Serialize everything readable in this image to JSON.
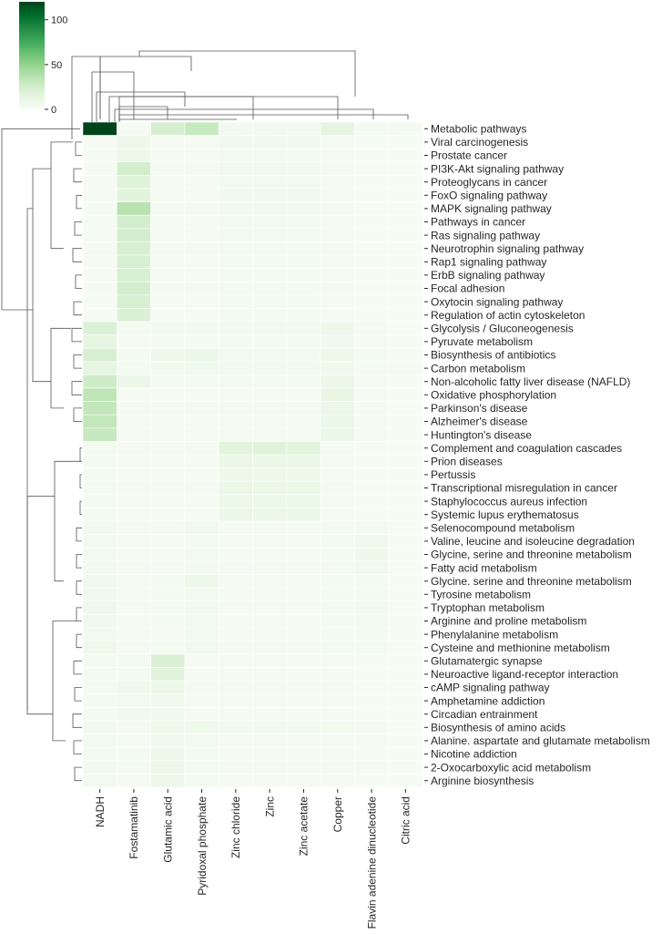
{
  "chart_data": {
    "type": "heatmap",
    "title": "",
    "colormap": {
      "low": "#f7fcf5",
      "mid": "#a1d99b",
      "high": "#00441b"
    },
    "vmin": 0,
    "vmax": 120,
    "colorbar_ticks": [
      {
        "value": 0,
        "label": "0"
      },
      {
        "value": 50,
        "label": "50"
      },
      {
        "value": 100,
        "label": "100"
      }
    ],
    "columns": [
      "NADH",
      "Fostamatinib",
      "Glutamic acid",
      "Pyridoxal phosphate",
      "Zinc chloride",
      "Zinc",
      "Zinc acetate",
      "Copper",
      "Flavin adenine dinucleotide",
      "Citric acid"
    ],
    "rows": [
      "Metabolic pathways",
      "Viral carcinogenesis",
      "Prostate cancer",
      "PI3K-Akt signaling pathway",
      "Proteoglycans in cancer",
      "FoxO signaling pathway",
      "MAPK signaling pathway",
      "Pathways in cancer",
      "Ras signaling pathway",
      "Neurotrophin signaling pathway",
      "Rap1 signaling pathway",
      "ErbB signaling pathway",
      "Focal adhesion",
      "Oxytocin signaling pathway",
      "Regulation of actin cytoskeleton",
      "Glycolysis / Gluconeogenesis",
      "Pyruvate metabolism",
      "Biosynthesis of antibiotics",
      "Carbon metabolism",
      "Non-alcoholic fatty liver disease (NAFLD)",
      "Oxidative phosphorylation",
      "Parkinson's disease",
      "Alzheimer's disease",
      "Huntington's disease",
      "Complement and coagulation cascades",
      "Prion diseases",
      "Pertussis",
      "Transcriptional misregulation in cancer",
      "Staphylococcus aureus infection",
      "Systemic lupus erythematosus",
      "Selenocompound metabolism",
      "Valine, leucine and isoleucine degradation",
      "Glycine, serine and threonine metabolism",
      "Fatty acid metabolism",
      "Glycine. serine and threonine metabolism",
      "Tyrosine metabolism",
      "Tryptophan metabolism",
      "Arginine and proline metabolism",
      "Phenylalanine metabolism",
      "Cysteine and methionine metabolism",
      "Glutamatergic synapse",
      "Neuroactive ligand-receptor interaction",
      "cAMP signaling pathway",
      "Amphetamine addiction",
      "Circadian entrainment",
      "Biosynthesis of amino acids",
      "Alanine. aspartate and glutamate metabolism",
      "Nicotine addiction",
      "2-Oxocarboxylic acid metabolism",
      "Arginine biosynthesis"
    ],
    "values": [
      [
        120,
        2,
        22,
        30,
        4,
        4,
        4,
        14,
        3,
        3
      ],
      [
        2,
        8,
        2,
        2,
        6,
        6,
        6,
        2,
        1,
        1
      ],
      [
        2,
        8,
        2,
        2,
        5,
        5,
        5,
        2,
        1,
        1
      ],
      [
        2,
        24,
        2,
        2,
        6,
        6,
        6,
        2,
        1,
        1
      ],
      [
        2,
        18,
        2,
        2,
        5,
        5,
        5,
        2,
        1,
        1
      ],
      [
        2,
        16,
        2,
        2,
        6,
        6,
        6,
        2,
        1,
        1
      ],
      [
        2,
        36,
        2,
        2,
        4,
        4,
        4,
        2,
        1,
        1
      ],
      [
        2,
        24,
        2,
        2,
        4,
        4,
        4,
        2,
        1,
        1
      ],
      [
        2,
        24,
        2,
        2,
        4,
        4,
        4,
        2,
        1,
        1
      ],
      [
        2,
        22,
        2,
        2,
        3,
        3,
        3,
        2,
        1,
        1
      ],
      [
        2,
        22,
        2,
        2,
        3,
        3,
        3,
        2,
        1,
        1
      ],
      [
        2,
        22,
        2,
        2,
        3,
        3,
        3,
        2,
        1,
        1
      ],
      [
        2,
        24,
        2,
        2,
        3,
        3,
        3,
        2,
        1,
        1
      ],
      [
        2,
        22,
        2,
        2,
        3,
        3,
        3,
        2,
        1,
        1
      ],
      [
        2,
        20,
        2,
        2,
        3,
        3,
        3,
        2,
        1,
        1
      ],
      [
        20,
        3,
        4,
        4,
        5,
        5,
        5,
        8,
        2,
        1
      ],
      [
        14,
        2,
        3,
        3,
        3,
        3,
        3,
        6,
        2,
        1
      ],
      [
        22,
        3,
        8,
        10,
        4,
        4,
        4,
        8,
        3,
        2
      ],
      [
        14,
        3,
        6,
        6,
        4,
        4,
        4,
        6,
        2,
        2
      ],
      [
        26,
        10,
        3,
        3,
        3,
        3,
        3,
        10,
        2,
        1
      ],
      [
        34,
        2,
        2,
        2,
        2,
        2,
        2,
        12,
        2,
        1
      ],
      [
        32,
        2,
        2,
        2,
        2,
        2,
        2,
        10,
        2,
        1
      ],
      [
        32,
        2,
        2,
        2,
        2,
        2,
        2,
        10,
        2,
        1
      ],
      [
        30,
        2,
        2,
        2,
        2,
        2,
        2,
        10,
        2,
        1
      ],
      [
        3,
        2,
        2,
        2,
        16,
        18,
        16,
        2,
        1,
        1
      ],
      [
        3,
        2,
        2,
        2,
        10,
        10,
        10,
        2,
        1,
        1
      ],
      [
        3,
        2,
        2,
        2,
        8,
        8,
        8,
        2,
        1,
        1
      ],
      [
        3,
        2,
        2,
        2,
        10,
        10,
        10,
        2,
        1,
        1
      ],
      [
        3,
        2,
        2,
        2,
        9,
        9,
        9,
        2,
        1,
        1
      ],
      [
        3,
        2,
        2,
        2,
        10,
        10,
        10,
        2,
        1,
        1
      ],
      [
        4,
        2,
        3,
        6,
        2,
        2,
        2,
        3,
        3,
        1
      ],
      [
        4,
        2,
        2,
        3,
        2,
        2,
        2,
        3,
        6,
        1
      ],
      [
        4,
        2,
        2,
        4,
        2,
        2,
        2,
        3,
        7,
        1
      ],
      [
        4,
        2,
        2,
        3,
        2,
        2,
        2,
        3,
        6,
        1
      ],
      [
        6,
        2,
        3,
        9,
        2,
        2,
        2,
        3,
        3,
        1
      ],
      [
        6,
        2,
        3,
        4,
        2,
        2,
        2,
        3,
        3,
        1
      ],
      [
        7,
        2,
        3,
        5,
        2,
        2,
        2,
        3,
        5,
        1
      ],
      [
        6,
        2,
        3,
        5,
        2,
        2,
        2,
        3,
        4,
        1
      ],
      [
        5,
        2,
        2,
        5,
        2,
        2,
        2,
        3,
        3,
        1
      ],
      [
        7,
        2,
        3,
        6,
        2,
        2,
        2,
        3,
        3,
        1
      ],
      [
        3,
        3,
        20,
        2,
        2,
        2,
        2,
        2,
        1,
        1
      ],
      [
        3,
        3,
        16,
        2,
        2,
        2,
        2,
        2,
        1,
        1
      ],
      [
        3,
        7,
        9,
        2,
        2,
        2,
        2,
        2,
        1,
        1
      ],
      [
        3,
        5,
        6,
        2,
        2,
        2,
        2,
        2,
        1,
        1
      ],
      [
        3,
        6,
        6,
        2,
        2,
        2,
        2,
        2,
        1,
        1
      ],
      [
        4,
        2,
        7,
        7,
        4,
        4,
        4,
        3,
        2,
        1
      ],
      [
        5,
        2,
        6,
        5,
        2,
        2,
        2,
        2,
        2,
        1
      ],
      [
        3,
        3,
        8,
        3,
        2,
        2,
        2,
        2,
        1,
        1
      ],
      [
        4,
        2,
        8,
        3,
        2,
        2,
        2,
        2,
        2,
        1
      ],
      [
        4,
        2,
        8,
        3,
        2,
        2,
        2,
        2,
        1,
        1
      ]
    ],
    "row_dendrogram": "present",
    "column_dendrogram": "present",
    "legend_position": "top-left"
  }
}
